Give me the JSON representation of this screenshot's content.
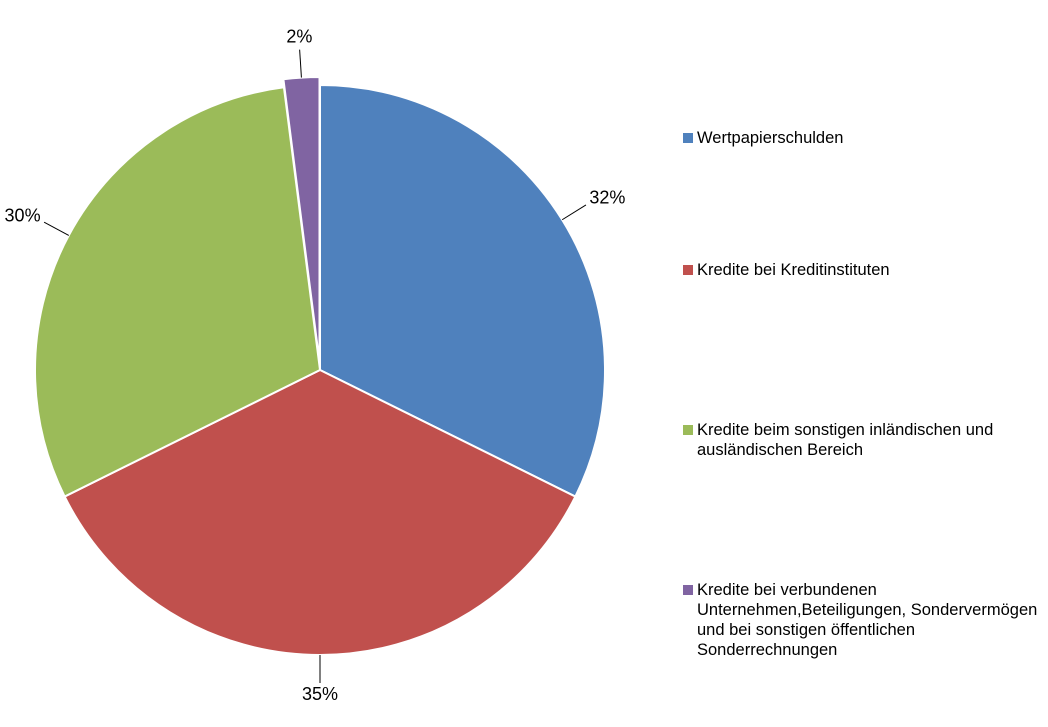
{
  "chart_data": {
    "type": "pie",
    "categories": [
      "Wertpapierschulden",
      "Kredite bei Kreditinstituten",
      "Kredite beim sonstigen inländischen und ausländischen Bereich",
      "Kredite bei verbundenen Unternehmen,Beteiligungen, Sondervermögen und bei sonstigen öffentlichen Sonderrechnungen"
    ],
    "values": [
      32,
      35,
      30,
      2
    ],
    "value_labels": [
      "32%",
      "35%",
      "30%",
      "2%"
    ],
    "colors": [
      "#4f81bd",
      "#c0504d",
      "#9bbb59",
      "#8064a2"
    ],
    "legend": "right"
  }
}
